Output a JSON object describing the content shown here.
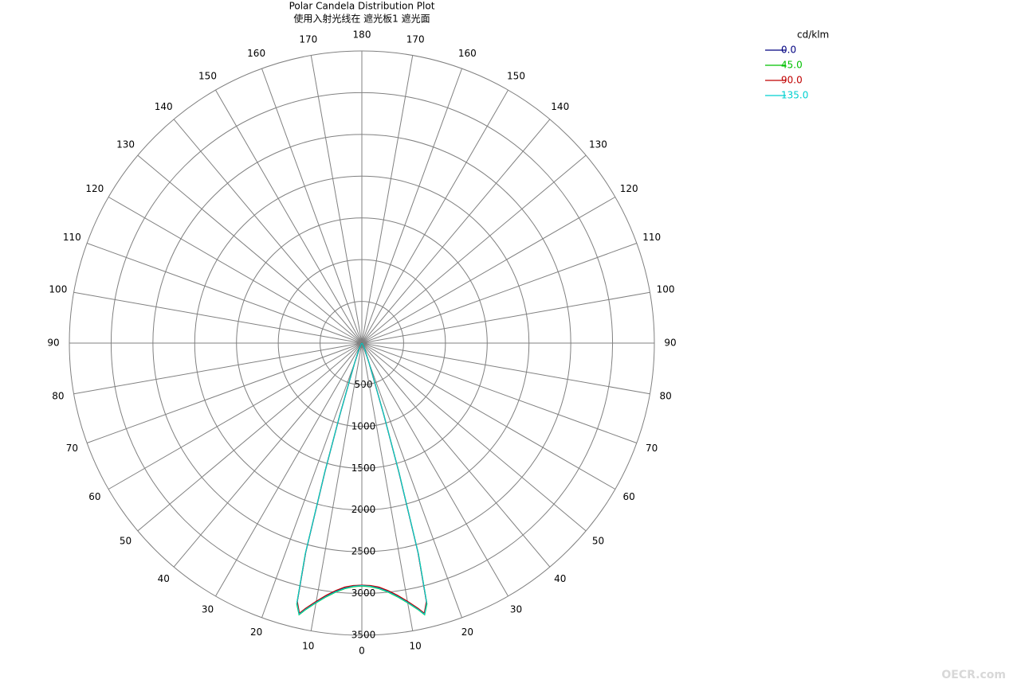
{
  "chart_data": {
    "type": "polar",
    "title": "Polar Candela Distribution Plot",
    "subtitle": "使用入射光线在 遮光板1 遮光面",
    "legend_title": "cd/klm",
    "legend_position": "top-right",
    "x": [
      0,
      2,
      4,
      6,
      8,
      10,
      12,
      13,
      14,
      15,
      16,
      17,
      18,
      20,
      25,
      30,
      40,
      60,
      90,
      180
    ],
    "series": [
      {
        "name": "0.0",
        "color": "#000080",
        "values": [
          2900,
          2910,
          2940,
          2990,
          3060,
          3150,
          3260,
          3330,
          3200,
          2600,
          1600,
          900,
          500,
          250,
          80,
          30,
          10,
          0,
          0,
          0
        ]
      },
      {
        "name": "45.0",
        "color": "#00c000",
        "values": [
          2910,
          2920,
          2950,
          3000,
          3070,
          3160,
          3270,
          3340,
          3220,
          2620,
          1620,
          910,
          510,
          250,
          80,
          30,
          10,
          0,
          0,
          0
        ]
      },
      {
        "name": "90.0",
        "color": "#c00000",
        "values": [
          2900,
          2905,
          2930,
          2980,
          3050,
          3140,
          3250,
          3320,
          3190,
          2590,
          1590,
          890,
          500,
          245,
          80,
          30,
          10,
          0,
          0,
          0
        ]
      },
      {
        "name": "135.0",
        "color": "#00d0d0",
        "values": [
          2905,
          2915,
          2945,
          2995,
          3065,
          3155,
          3265,
          3335,
          3210,
          2610,
          1610,
          905,
          505,
          250,
          80,
          30,
          10,
          0,
          0,
          0
        ]
      }
    ],
    "ylim": [
      0,
      3500
    ],
    "yticks": [
      500,
      1000,
      1500,
      2000,
      2500,
      3000,
      3500
    ],
    "xlim": [
      0,
      180
    ],
    "xticks": [
      0,
      10,
      20,
      30,
      40,
      50,
      60,
      70,
      80,
      90,
      100,
      110,
      120,
      130,
      140,
      150,
      160,
      170,
      180
    ],
    "grid": true,
    "watermark": "OECR.com"
  }
}
